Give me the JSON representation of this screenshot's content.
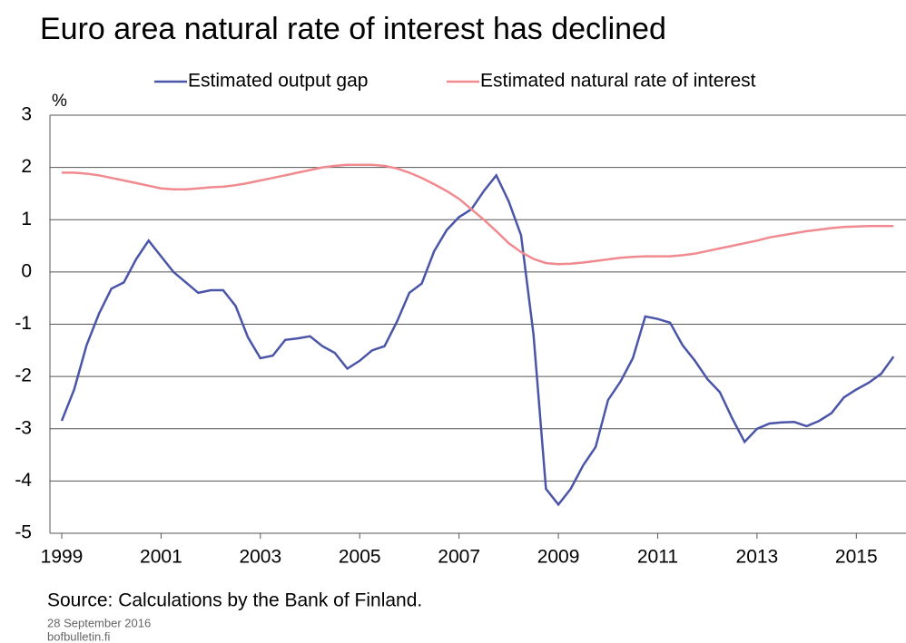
{
  "chart_data": {
    "type": "line",
    "title": "Euro area natural rate of interest has declined",
    "y_label": "%",
    "source": "Source: Calculations by the Bank of Finland.",
    "date": "28 September 2016",
    "site": "bofbulletin.fi",
    "x": [
      1999,
      1999.25,
      1999.5,
      1999.75,
      2000,
      2000.25,
      2000.5,
      2000.75,
      2001,
      2001.25,
      2001.5,
      2001.75,
      2002,
      2002.25,
      2002.5,
      2002.75,
      2003,
      2003.25,
      2003.5,
      2003.75,
      2004,
      2004.25,
      2004.5,
      2004.75,
      2005,
      2005.25,
      2005.5,
      2005.75,
      2006,
      2006.25,
      2006.5,
      2006.75,
      2007,
      2007.25,
      2007.5,
      2007.75,
      2008,
      2008.25,
      2008.5,
      2008.75,
      2009,
      2009.25,
      2009.5,
      2009.75,
      2010,
      2010.25,
      2010.5,
      2010.75,
      2011,
      2011.25,
      2011.5,
      2011.75,
      2012,
      2012.25,
      2012.5,
      2012.75,
      2013,
      2013.25,
      2013.5,
      2013.75,
      2014,
      2014.25,
      2014.5,
      2014.75,
      2015,
      2015.25,
      2015.5,
      2015.75
    ],
    "series": [
      {
        "name": "Estimated output gap",
        "color": "#4b55a8",
        "values": [
          -2.85,
          -2.25,
          -1.4,
          -0.8,
          -0.32,
          -0.2,
          0.25,
          0.6,
          0.3,
          0.0,
          -0.2,
          -0.4,
          -0.35,
          -0.35,
          -0.65,
          -1.25,
          -1.65,
          -1.6,
          -1.3,
          -1.27,
          -1.23,
          -1.42,
          -1.55,
          -1.85,
          -1.7,
          -1.5,
          -1.42,
          -0.95,
          -0.4,
          -0.22,
          0.4,
          0.8,
          1.05,
          1.2,
          1.55,
          1.85,
          1.35,
          0.7,
          -1.2,
          -4.15,
          -4.45,
          -4.15,
          -3.7,
          -3.35,
          -2.45,
          -2.1,
          -1.65,
          -0.85,
          -0.9,
          -0.97,
          -1.4,
          -1.7,
          -2.05,
          -2.3,
          -2.8,
          -3.25,
          -3.0,
          -2.9,
          -2.88,
          -2.87,
          -2.95,
          -2.85,
          -2.7,
          -2.4,
          -2.25,
          -2.12,
          -1.95,
          -1.62
        ]
      },
      {
        "name": "Estimated natural rate of interest",
        "color": "#f08a8f",
        "values": [
          1.9,
          1.9,
          1.88,
          1.85,
          1.8,
          1.75,
          1.7,
          1.65,
          1.6,
          1.58,
          1.58,
          1.6,
          1.62,
          1.63,
          1.66,
          1.7,
          1.75,
          1.8,
          1.85,
          1.9,
          1.95,
          2.0,
          2.03,
          2.05,
          2.05,
          2.05,
          2.03,
          1.98,
          1.9,
          1.8,
          1.68,
          1.55,
          1.4,
          1.2,
          1.0,
          0.78,
          0.55,
          0.38,
          0.25,
          0.17,
          0.15,
          0.16,
          0.18,
          0.21,
          0.24,
          0.27,
          0.29,
          0.3,
          0.3,
          0.3,
          0.32,
          0.35,
          0.4,
          0.45,
          0.5,
          0.55,
          0.6,
          0.66,
          0.7,
          0.74,
          0.78,
          0.81,
          0.84,
          0.86,
          0.87,
          0.88,
          0.88,
          0.88
        ]
      }
    ],
    "xlim": [
      1999,
      2016
    ],
    "xticks": [
      1999,
      2001,
      2003,
      2005,
      2007,
      2009,
      2011,
      2013,
      2015
    ],
    "ylim": [
      -5,
      3
    ],
    "yticks": [
      -5,
      -4,
      -3,
      -2,
      -1,
      0,
      1,
      2,
      3
    ],
    "grid": true,
    "legend": "top"
  }
}
